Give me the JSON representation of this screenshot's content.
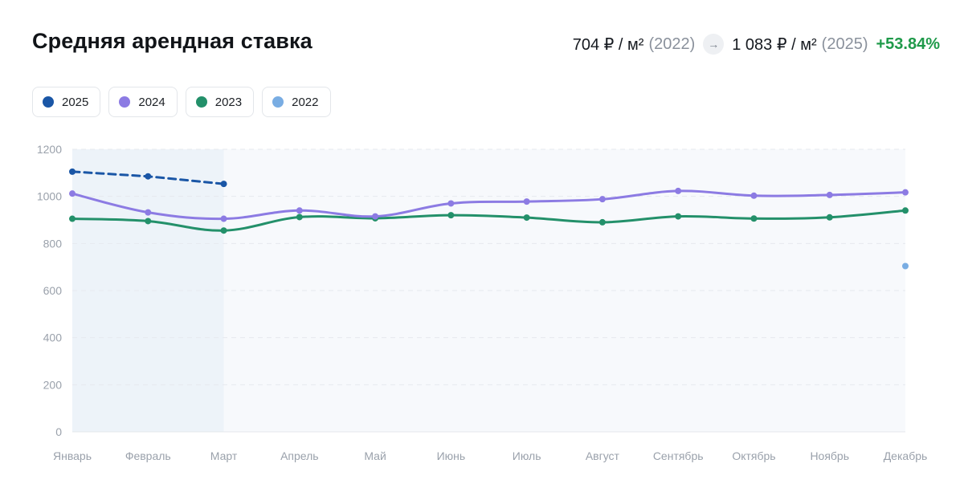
{
  "header": {
    "title": "Средняя арендная ставка",
    "from_value": "704 ₽ / м²",
    "from_year": "(2022)",
    "to_value": "1 083 ₽ / м²",
    "to_year": "(2025)",
    "change": "+53.84%",
    "arrow_icon": "arrow-right-icon",
    "change_color": "#1f9a4a"
  },
  "legend": [
    {
      "label": "2025",
      "color": "#1a56a6"
    },
    {
      "label": "2024",
      "color": "#8c7be3"
    },
    {
      "label": "2023",
      "color": "#23906a"
    },
    {
      "label": "2022",
      "color": "#79ade3"
    }
  ],
  "chart_data": {
    "type": "line",
    "title": "Средняя арендная ставка",
    "xlabel": "",
    "ylabel": "",
    "categories": [
      "Январь",
      "Февраль",
      "Март",
      "Апрель",
      "Май",
      "Июнь",
      "Июль",
      "Август",
      "Сентябрь",
      "Октябрь",
      "Ноябрь",
      "Декабрь"
    ],
    "y_ticks": [
      0,
      200,
      400,
      600,
      800,
      1000,
      1200
    ],
    "ylim": [
      0,
      1200
    ],
    "grid": "horizontal dashed",
    "legend_position": "top-left",
    "highlighted_range": [
      "Январь",
      "Март"
    ],
    "series": [
      {
        "name": "2025",
        "color": "#1a56a6",
        "style": "dashed",
        "values": [
          1105,
          1085,
          1053,
          null,
          null,
          null,
          null,
          null,
          null,
          null,
          null,
          null
        ]
      },
      {
        "name": "2024",
        "color": "#8c7be3",
        "style": "solid",
        "values": [
          1012,
          932,
          905,
          940,
          915,
          970,
          978,
          988,
          1023,
          1003,
          1006,
          1017
        ]
      },
      {
        "name": "2023",
        "color": "#23906a",
        "style": "solid",
        "values": [
          905,
          895,
          855,
          912,
          907,
          920,
          910,
          890,
          915,
          906,
          911,
          940
        ]
      },
      {
        "name": "2022",
        "color": "#79ade3",
        "style": "point",
        "values": [
          null,
          null,
          null,
          null,
          null,
          null,
          null,
          null,
          null,
          null,
          null,
          704
        ]
      }
    ]
  }
}
